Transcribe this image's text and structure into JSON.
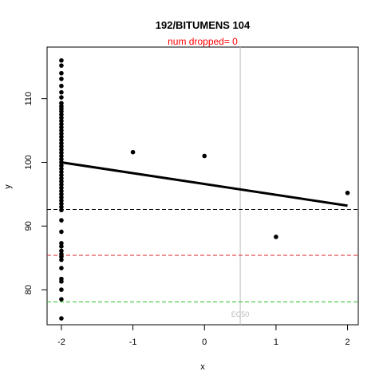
{
  "chart_data": {
    "type": "scatter",
    "title": "192/BITUMENS 104",
    "subtitle": "num dropped= 0",
    "xlabel": "x",
    "ylabel": "y",
    "xlim": [
      -2.2,
      2.15
    ],
    "ylim": [
      74.5,
      118.1
    ],
    "x_ticks": [
      -2,
      -1,
      0,
      1,
      2
    ],
    "x_tick_labels": [
      "-2",
      "-1",
      "0",
      "1",
      "2"
    ],
    "y_ticks": [
      80,
      90,
      100,
      110
    ],
    "y_tick_labels": [
      "80",
      "90",
      "100",
      "110"
    ],
    "points": [
      {
        "x": -2,
        "y": 116.0
      },
      {
        "x": -2,
        "y": 115.2
      },
      {
        "x": -2,
        "y": 114.0
      },
      {
        "x": -2,
        "y": 113.1
      },
      {
        "x": -2,
        "y": 112.0
      },
      {
        "x": -2,
        "y": 111.0
      },
      {
        "x": -2,
        "y": 110.2
      },
      {
        "x": -2,
        "y": 109.3
      },
      {
        "x": -2,
        "y": 108.8
      },
      {
        "x": -2,
        "y": 108.4
      },
      {
        "x": -2,
        "y": 108.0
      },
      {
        "x": -2,
        "y": 107.5
      },
      {
        "x": -2,
        "y": 107.0
      },
      {
        "x": -2,
        "y": 106.5
      },
      {
        "x": -2,
        "y": 106.0
      },
      {
        "x": -2,
        "y": 105.5
      },
      {
        "x": -2,
        "y": 105.0
      },
      {
        "x": -2,
        "y": 104.5
      },
      {
        "x": -2,
        "y": 104.0
      },
      {
        "x": -2,
        "y": 103.5
      },
      {
        "x": -2,
        "y": 103.0
      },
      {
        "x": -2,
        "y": 102.5
      },
      {
        "x": -2,
        "y": 102.0
      },
      {
        "x": -2,
        "y": 101.5
      },
      {
        "x": -2,
        "y": 101.0
      },
      {
        "x": -2,
        "y": 100.5
      },
      {
        "x": -2,
        "y": 100.0
      },
      {
        "x": -2,
        "y": 99.5
      },
      {
        "x": -2,
        "y": 99.0
      },
      {
        "x": -2,
        "y": 98.5
      },
      {
        "x": -2,
        "y": 98.0
      },
      {
        "x": -2,
        "y": 97.5
      },
      {
        "x": -2,
        "y": 97.0
      },
      {
        "x": -2,
        "y": 96.5
      },
      {
        "x": -2,
        "y": 96.0
      },
      {
        "x": -2,
        "y": 95.5
      },
      {
        "x": -2,
        "y": 95.0
      },
      {
        "x": -2,
        "y": 94.5
      },
      {
        "x": -2,
        "y": 94.0
      },
      {
        "x": -2,
        "y": 93.5
      },
      {
        "x": -2,
        "y": 93.0
      },
      {
        "x": -2,
        "y": 92.5
      },
      {
        "x": -2,
        "y": 90.9
      },
      {
        "x": -2,
        "y": 89.1
      },
      {
        "x": -2,
        "y": 87.3
      },
      {
        "x": -2,
        "y": 86.8
      },
      {
        "x": -2,
        "y": 86.1
      },
      {
        "x": -2,
        "y": 85.6
      },
      {
        "x": -2,
        "y": 85.2
      },
      {
        "x": -2,
        "y": 84.7
      },
      {
        "x": -2,
        "y": 83.4
      },
      {
        "x": -2,
        "y": 81.7
      },
      {
        "x": -2,
        "y": 81.3
      },
      {
        "x": -2,
        "y": 80.0
      },
      {
        "x": -2,
        "y": 78.5
      },
      {
        "x": -2,
        "y": 75.5
      },
      {
        "x": -1,
        "y": 101.6
      },
      {
        "x": 0,
        "y": 101.0
      },
      {
        "x": 1,
        "y": 88.3
      },
      {
        "x": 2,
        "y": 95.2
      }
    ],
    "fit_line": {
      "x": [
        -2,
        2
      ],
      "y": [
        100.0,
        93.2
      ],
      "color": "#000000"
    },
    "hlines": [
      {
        "y": 92.6,
        "color": "#000000",
        "style": "dashed"
      },
      {
        "y": 85.4,
        "color": "#dd2222",
        "style": "dashed"
      },
      {
        "y": 78.1,
        "color": "#22bb22",
        "style": "dashed"
      }
    ],
    "vline": {
      "x": 0.5,
      "color": "#bbbbbb",
      "label": "EC50"
    },
    "subtitle_color": "#ff0000",
    "ec50_label_color": "#bbbbbb",
    "grid": false,
    "legend": "none"
  }
}
